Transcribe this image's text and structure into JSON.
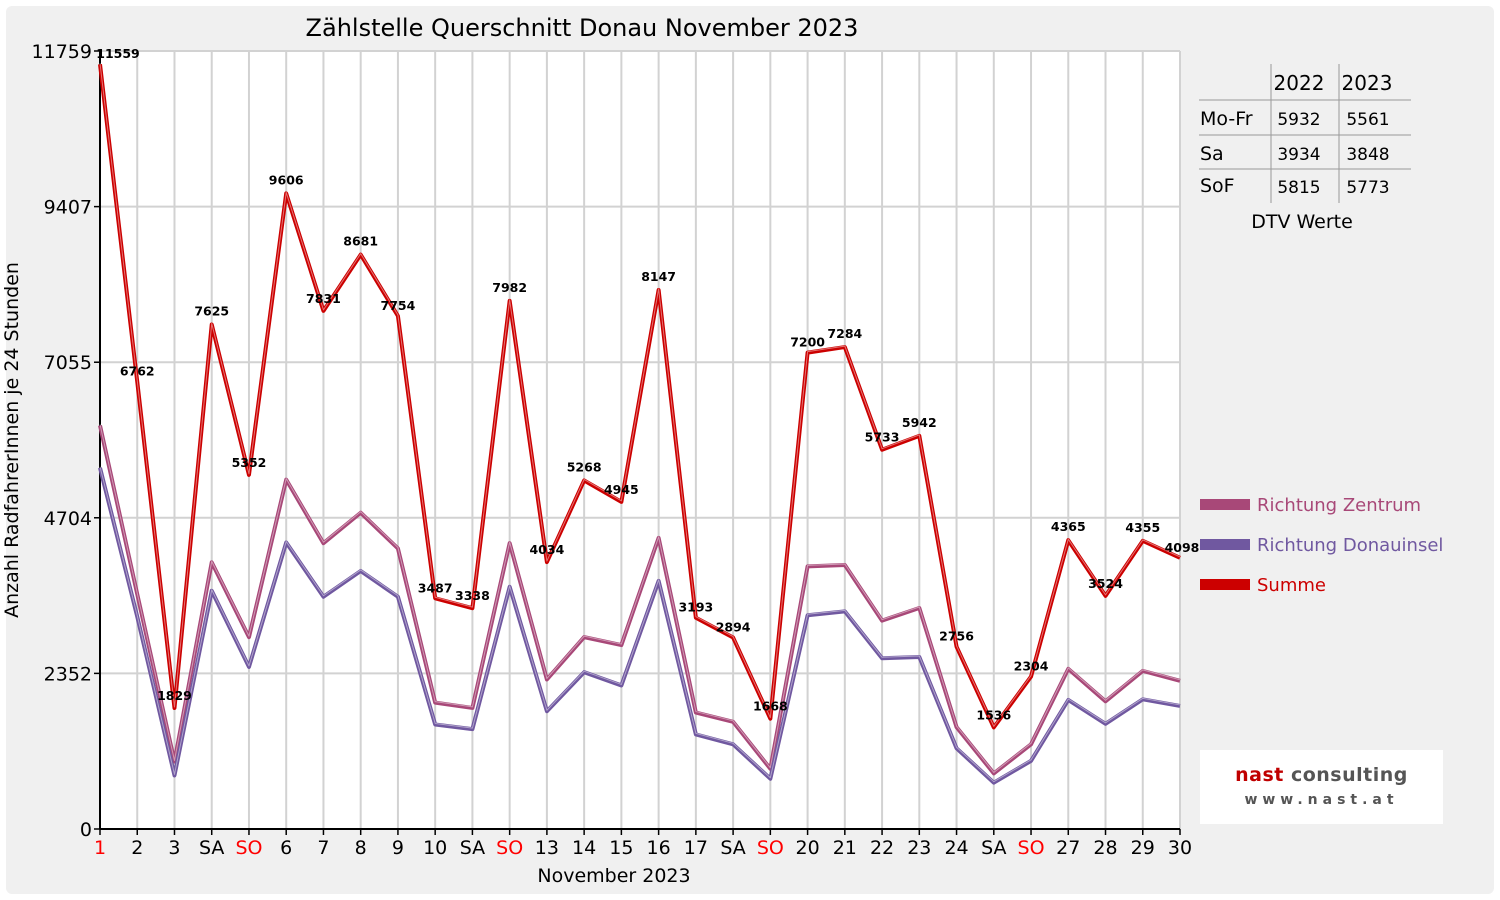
{
  "chart_data": {
    "type": "line",
    "title": "Zählstelle Querschnitt Donau November 2023",
    "xlabel": "November 2023",
    "ylabel": "Anzahl RadfahrerInnen je 24 Stunden",
    "ylim": [
      0,
      11759
    ],
    "yticks": [
      "0",
      "2352",
      "4704",
      "7055",
      "9407",
      "11759"
    ],
    "categories": [
      "1",
      "2",
      "3",
      "SA",
      "SO",
      "6",
      "7",
      "8",
      "9",
      "10",
      "SA",
      "SO",
      "13",
      "14",
      "15",
      "16",
      "17",
      "SA",
      "SO",
      "20",
      "21",
      "22",
      "23",
      "24",
      "SA",
      "SO",
      "27",
      "28",
      "29",
      "30"
    ],
    "category_colors": [
      "#ff0000",
      "#000000",
      "#000000",
      "#000000",
      "#ff0000",
      "#000000",
      "#000000",
      "#000000",
      "#000000",
      "#000000",
      "#000000",
      "#ff0000",
      "#000000",
      "#000000",
      "#000000",
      "#000000",
      "#000000",
      "#000000",
      "#ff0000",
      "#000000",
      "#000000",
      "#000000",
      "#000000",
      "#000000",
      "#000000",
      "#ff0000",
      "#000000",
      "#000000",
      "#000000",
      "#000000"
    ],
    "grid": true,
    "legend_position": "right",
    "series": [
      {
        "name": "Richtung Zentrum",
        "color": "#a84878",
        "values": [
          6100,
          3550,
          1020,
          4030,
          2900,
          5280,
          4320,
          4780,
          4240,
          1910,
          1830,
          4320,
          2260,
          2900,
          2780,
          4400,
          1760,
          1620,
          910,
          3970,
          3990,
          3150,
          3340,
          1540,
          840,
          1280,
          2420,
          1930,
          2390,
          2240
        ]
      },
      {
        "name": "Richtung Donauinsel",
        "color": "#7058a0",
        "values": [
          5460,
          3210,
          810,
          3600,
          2450,
          4330,
          3510,
          3900,
          3510,
          1580,
          1510,
          3660,
          1780,
          2370,
          2170,
          3750,
          1430,
          1280,
          760,
          3230,
          3290,
          2580,
          2600,
          1220,
          700,
          1030,
          1950,
          1590,
          1960,
          1860
        ]
      },
      {
        "name": "Summe",
        "color": "#cc0000",
        "values": [
          11559,
          6762,
          1829,
          7625,
          5352,
          9606,
          7831,
          8681,
          7754,
          3487,
          3338,
          7982,
          4034,
          5268,
          4945,
          8147,
          3193,
          2894,
          1668,
          7200,
          7284,
          5733,
          5942,
          2756,
          1536,
          2304,
          4365,
          3524,
          4355,
          4098
        ]
      }
    ],
    "data_labels": [
      "11559",
      "6762",
      "1829",
      "7625",
      "5352",
      "9606",
      "7831",
      "8681",
      "7754",
      "3487",
      "3338",
      "7982",
      "4034",
      "5268",
      "4945",
      "8147",
      "3193",
      "2894",
      "1668",
      "7200",
      "7284",
      "5733",
      "5942",
      "2756",
      "1536",
      "2304",
      "4365",
      "3524",
      "4355",
      "4098"
    ]
  },
  "dtv_table": {
    "headers": [
      "",
      "2022",
      "2023"
    ],
    "rows": [
      [
        "Mo-Fr",
        "5932",
        "5561"
      ],
      [
        "Sa",
        "3934",
        "3848"
      ],
      [
        "SoF",
        "5815",
        "5773"
      ]
    ],
    "caption": "DTV Werte"
  },
  "logo": {
    "word1": "nast",
    "word2": "consulting",
    "url": "www.nast.at"
  }
}
